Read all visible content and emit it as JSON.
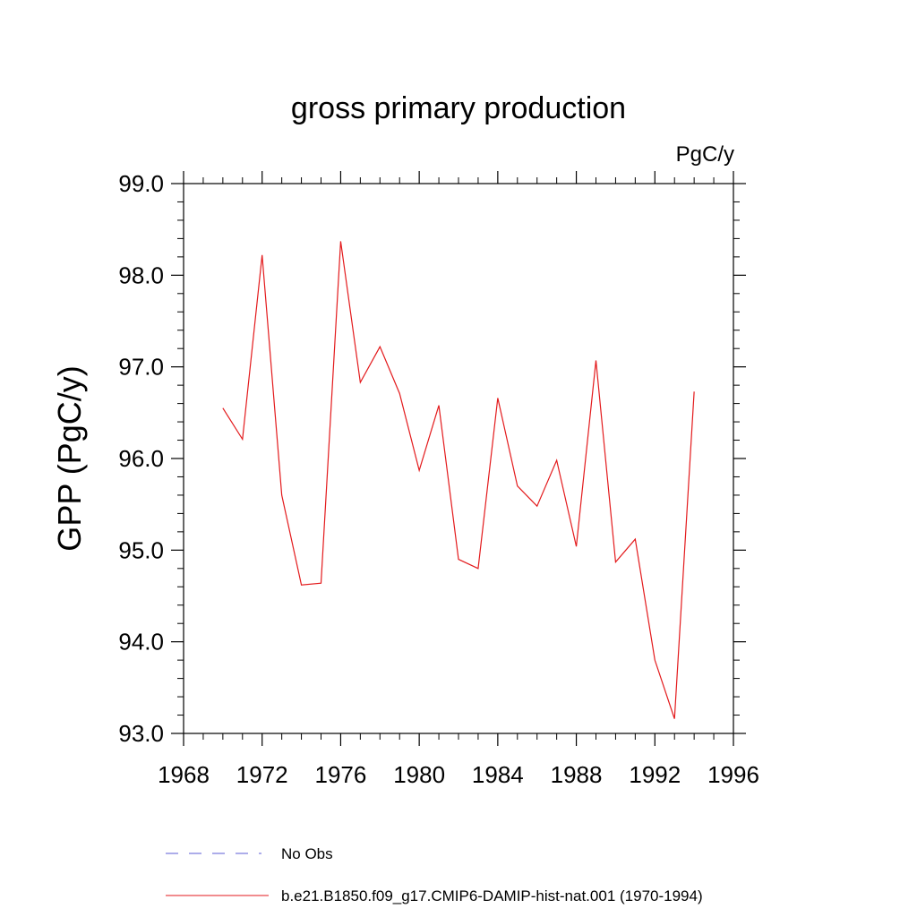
{
  "chart_data": {
    "type": "line",
    "title": "gross primary production",
    "units_label": "PgC/y",
    "ylabel": "GPP  (PgC/y)",
    "xlabel": "",
    "xlim": [
      1968,
      1996
    ],
    "ylim": [
      93.0,
      99.0
    ],
    "x_ticks": [
      "1968",
      "1972",
      "1976",
      "1980",
      "1984",
      "1988",
      "1992",
      "1996"
    ],
    "y_ticks": [
      "93.0",
      "94.0",
      "95.0",
      "96.0",
      "97.0",
      "98.0",
      "99.0"
    ],
    "grid": false,
    "legend_placement": "bottom",
    "x": [
      1970,
      1971,
      1972,
      1973,
      1974,
      1975,
      1976,
      1977,
      1978,
      1979,
      1980,
      1981,
      1982,
      1983,
      1984,
      1985,
      1986,
      1987,
      1988,
      1989,
      1990,
      1991,
      1992,
      1993,
      1994
    ],
    "series": [
      {
        "name": "b.e21.B1850.f09_g17.CMIP6-DAMIP-hist-nat.001 (1970-1994)",
        "color": "#e31a1c",
        "values": [
          96.55,
          96.21,
          98.22,
          95.6,
          94.62,
          94.64,
          98.37,
          96.83,
          97.22,
          96.71,
          95.87,
          96.58,
          94.9,
          94.8,
          96.66,
          95.7,
          95.48,
          95.98,
          95.04,
          97.07,
          94.87,
          95.12,
          93.8,
          93.16,
          96.73
        ]
      }
    ],
    "legend": [
      {
        "label": "No Obs",
        "color": "#5b5bd6",
        "dash": true
      },
      {
        "label": "b.e21.B1850.f09_g17.CMIP6-DAMIP-hist-nat.001 (1970-1994)",
        "color": "#e31a1c",
        "dash": false
      }
    ]
  }
}
